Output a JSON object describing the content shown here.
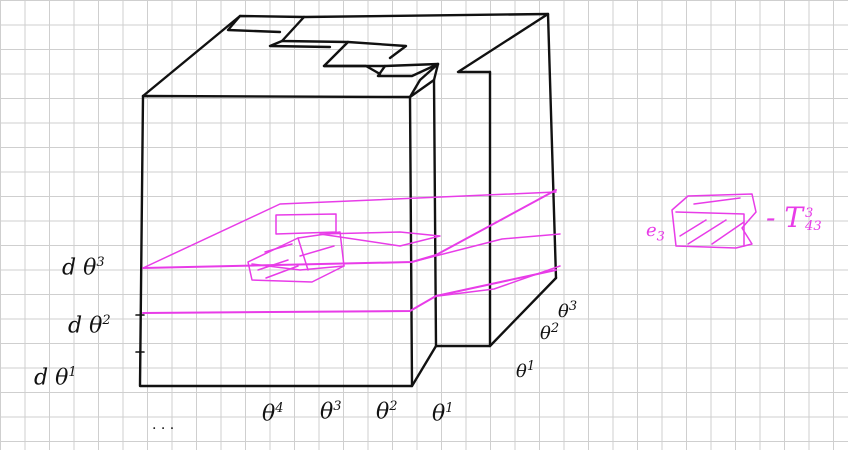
{
  "diagram": {
    "description_ink_color": "#111111",
    "highlight_color": "#e83ce8",
    "left_axis_labels": [
      {
        "base": "d θ",
        "sup": "3"
      },
      {
        "base": "d θ",
        "sup": "2"
      },
      {
        "base": "d θ",
        "sup": "1"
      }
    ],
    "bottom_axis_labels": [
      {
        "base": "θ",
        "sup": "4"
      },
      {
        "base": "θ",
        "sup": "3"
      },
      {
        "base": "θ",
        "sup": "2"
      },
      {
        "base": "θ",
        "sup": "1"
      }
    ],
    "right_axis_labels": [
      {
        "base": "θ",
        "sup": "3"
      },
      {
        "base": "θ",
        "sup": "2"
      },
      {
        "base": "θ",
        "sup": "1"
      }
    ],
    "element_label": {
      "prefix": "e",
      "sub": "3"
    },
    "tensor_label": {
      "base": "- T",
      "sup": "3",
      "sub": "43"
    },
    "dots": ". . ."
  }
}
